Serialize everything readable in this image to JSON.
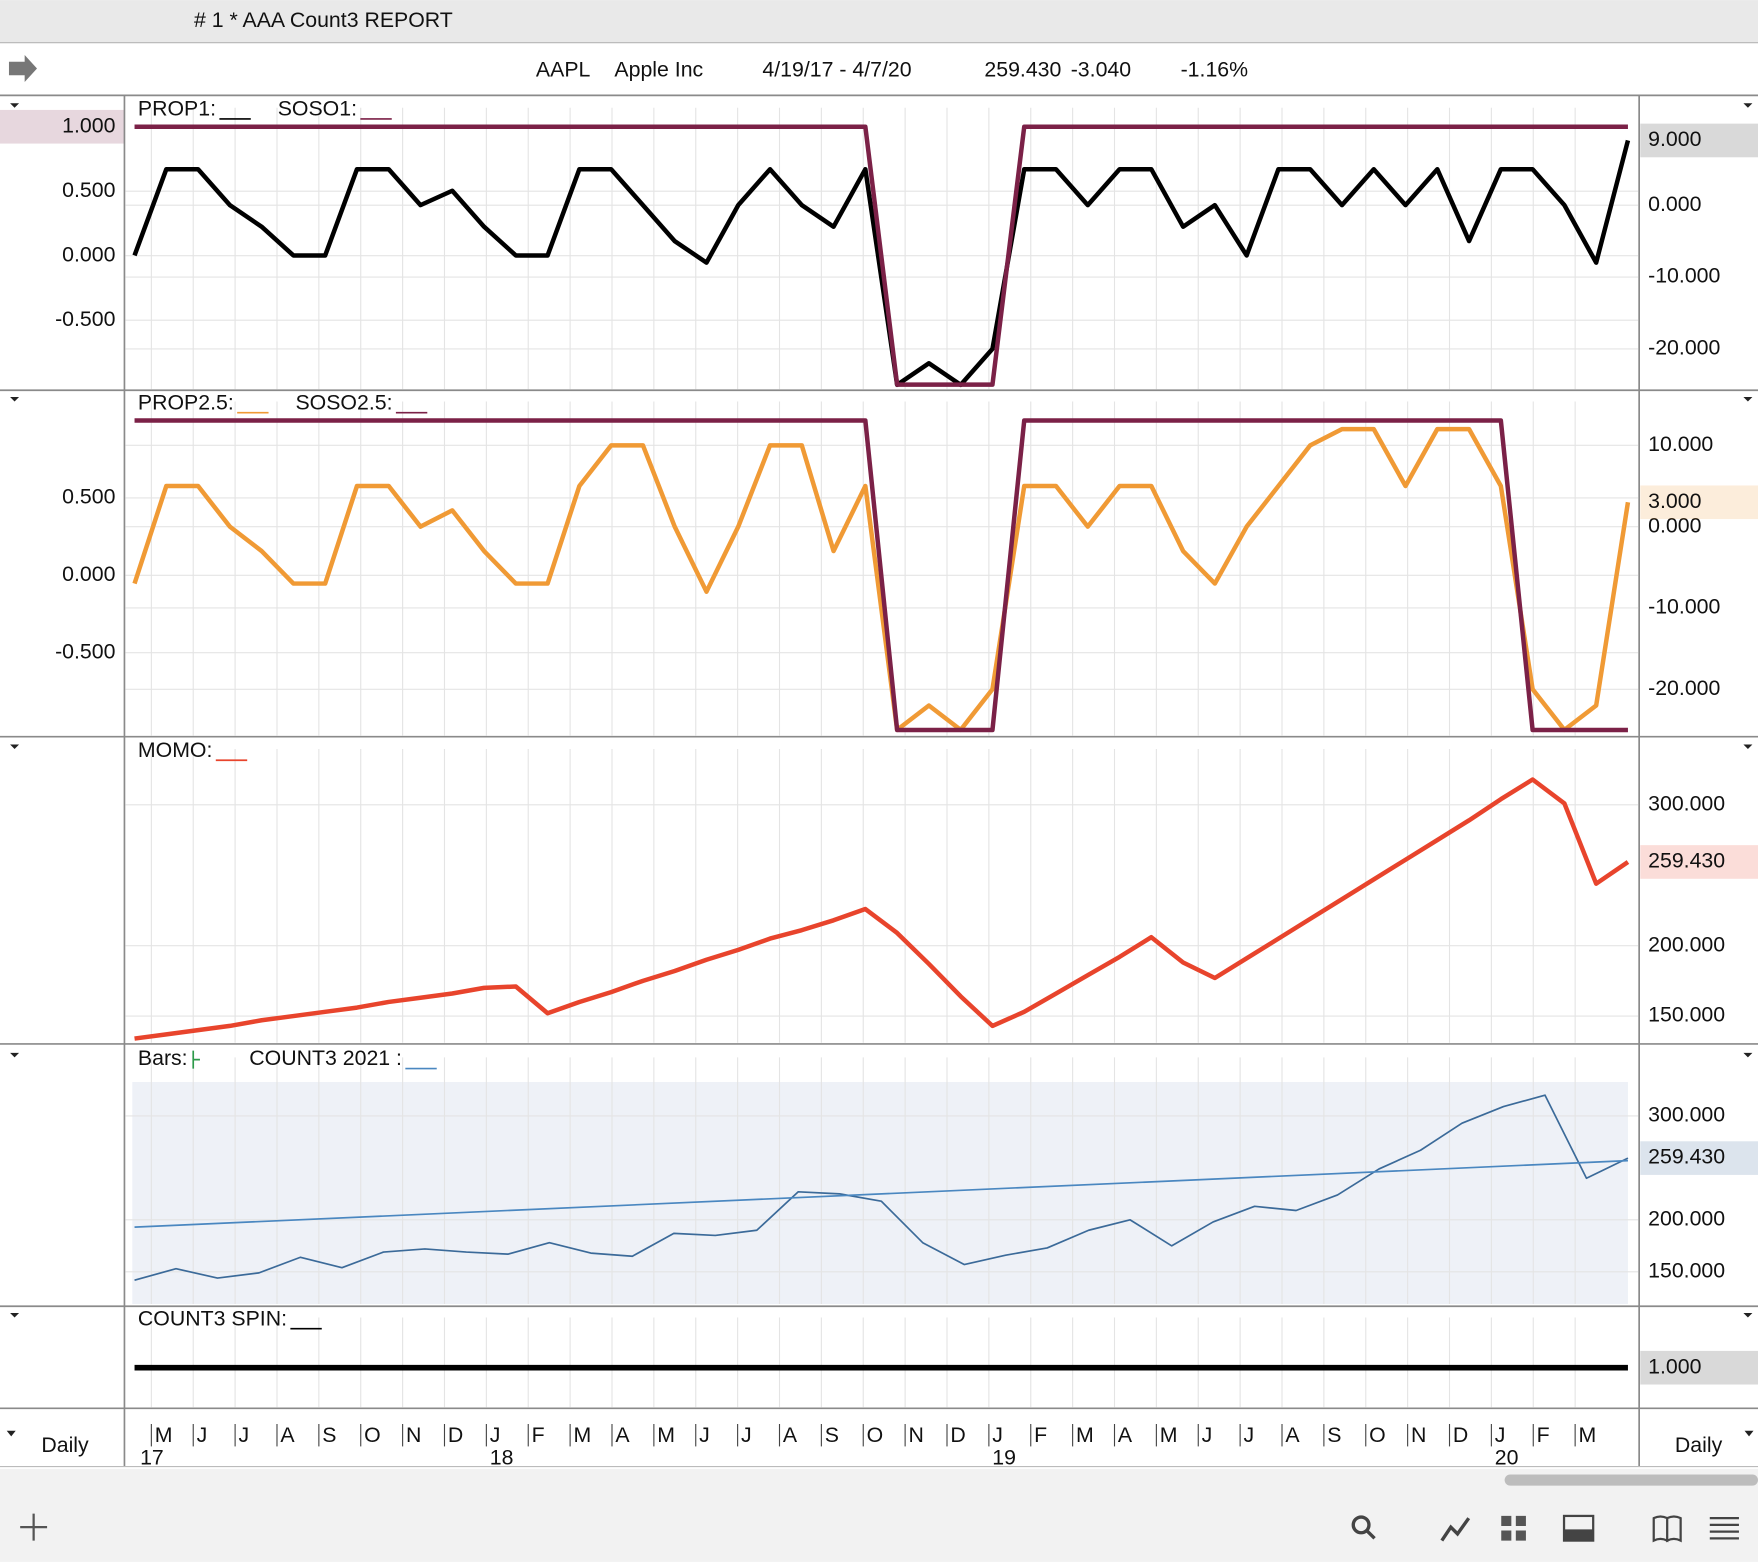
{
  "window_title": "# 1 *  AAA Count3 REPORT",
  "header": {
    "symbol": "AAPL",
    "name": "Apple Inc",
    "date_range": "4/19/17 - 4/7/20",
    "last": "259.430",
    "change": "-3.040",
    "change_pct": "-1.16%"
  },
  "chart_data": [
    {
      "type": "line",
      "series": [
        {
          "name": "PROP1:",
          "color": "#000000",
          "axis": "y2",
          "last_label": "9.000",
          "values": [
            -7,
            5,
            5,
            0,
            -3,
            -7,
            -7,
            5,
            5,
            0,
            2,
            -3,
            -7,
            -7,
            5,
            5,
            0,
            -5,
            -8,
            0,
            5,
            0,
            -3,
            5,
            -25,
            -22,
            -25,
            -20,
            5,
            5,
            0,
            5,
            5,
            -3,
            0,
            -7,
            5,
            5,
            0,
            5,
            0,
            5,
            -5,
            5,
            5,
            0,
            -8,
            9
          ]
        },
        {
          "name": "SOSO1:",
          "color": "#7b2147",
          "axis": "y",
          "last_label": "1.000",
          "values": [
            1,
            1,
            1,
            1,
            1,
            1,
            1,
            1,
            1,
            1,
            1,
            1,
            1,
            1,
            1,
            1,
            1,
            1,
            1,
            1,
            1,
            1,
            1,
            1,
            -1,
            -1,
            -1,
            -1,
            1,
            1,
            1,
            1,
            1,
            1,
            1,
            1,
            1,
            1,
            1,
            1,
            1,
            1,
            1,
            1,
            1,
            1,
            1,
            1
          ]
        }
      ],
      "ylim": [
        -1.035,
        1.217
      ],
      "yticks": [
        {
          "value": 0.5,
          "label": "0.500"
        },
        {
          "value": 0,
          "label": "0.000"
        },
        {
          "value": -0.5,
          "label": "-0.500"
        }
      ],
      "y2lim": [
        -25.6,
        14.8
      ],
      "y2ticks": [
        {
          "value": 0,
          "label": "0.000"
        },
        {
          "value": -10,
          "label": "-10.000"
        },
        {
          "value": -20,
          "label": "-20.000"
        }
      ]
    },
    {
      "type": "line",
      "series": [
        {
          "name": "PROP2.5:",
          "color": "#f09a35",
          "axis": "y2",
          "last_label": "3.000",
          "values": [
            -7,
            5,
            5,
            0,
            -3,
            -7,
            -7,
            5,
            5,
            0,
            2,
            -3,
            -7,
            -7,
            5,
            10,
            10,
            0,
            -8,
            0,
            10,
            10,
            -3,
            5,
            -25,
            -22,
            -25,
            -20,
            5,
            5,
            0,
            5,
            5,
            -3,
            -7,
            0,
            5,
            10,
            12,
            12,
            5,
            12,
            12,
            5,
            -20,
            -25,
            -22,
            3
          ]
        },
        {
          "name": "SOSO2.5:",
          "color": "#7b2147",
          "axis": "y",
          "values": [
            1,
            1,
            1,
            1,
            1,
            1,
            1,
            1,
            1,
            1,
            1,
            1,
            1,
            1,
            1,
            1,
            1,
            1,
            1,
            1,
            1,
            1,
            1,
            1,
            -1,
            -1,
            -1,
            -1,
            1,
            1,
            1,
            1,
            1,
            1,
            1,
            1,
            1,
            1,
            1,
            1,
            1,
            1,
            1,
            1,
            -1,
            -1,
            -1,
            -1
          ]
        }
      ],
      "ylim": [
        -1.036,
        1.181
      ],
      "yticks": [
        {
          "value": 0.5,
          "label": "0.500"
        },
        {
          "value": 0,
          "label": "0.000"
        },
        {
          "value": -0.5,
          "label": "-0.500"
        }
      ],
      "y2lim": [
        -25.7,
        16.5
      ],
      "y2ticks": [
        {
          "value": 10,
          "label": "10.000"
        },
        {
          "value": 0,
          "label": "0.000"
        },
        {
          "value": -10,
          "label": "-10.000"
        },
        {
          "value": -20,
          "label": "-20.000"
        }
      ]
    },
    {
      "type": "line",
      "series": [
        {
          "name": "MOMO:",
          "color": "#e8442c",
          "axis": "y2",
          "last_label": "259.430",
          "values": [
            134,
            137,
            140,
            143,
            147,
            150,
            153,
            156,
            160,
            163,
            166,
            170,
            171,
            152,
            160,
            167,
            175,
            182,
            190,
            197,
            205,
            211,
            218,
            226,
            209,
            187,
            164,
            143,
            153,
            166,
            179,
            192,
            206,
            188,
            177,
            191,
            205,
            219,
            233,
            247,
            261,
            275,
            289,
            304,
            318,
            301,
            244,
            259.43
          ]
        }
      ],
      "y2lim": [
        131,
        346
      ],
      "y2ticks": [
        {
          "value": 300,
          "label": "300.000"
        },
        {
          "value": 200,
          "label": "200.000"
        },
        {
          "value": 150,
          "label": "150.000"
        }
      ]
    },
    {
      "type": "line",
      "series": [
        {
          "name": "Bars:",
          "kind": "bars",
          "color": "#3b6a99",
          "axis": "y2",
          "last_label": "259.430",
          "values": [
            142,
            153,
            144,
            149,
            164,
            154,
            169,
            172,
            169,
            167,
            178,
            168,
            165,
            187,
            185,
            190,
            227,
            225,
            218,
            178,
            157,
            166,
            173,
            190,
            200,
            175,
            198,
            213,
            209,
            224,
            249,
            267,
            293,
            309,
            320,
            240,
            259.43
          ]
        },
        {
          "name": "COUNT3 2021 :",
          "color": "#4a87c0",
          "axis": "y2",
          "values": [
            193,
            257
          ]
        }
      ],
      "y2lim": [
        119,
        365
      ],
      "y2ticks": [
        {
          "value": 300,
          "label": "300.000"
        },
        {
          "value": 200,
          "label": "200.000"
        },
        {
          "value": 150,
          "label": "150.000"
        }
      ]
    },
    {
      "type": "line",
      "series": [
        {
          "name": "COUNT3 SPIN:",
          "color": "#000000",
          "axis": "y2",
          "last_label": "1.000",
          "values": [
            1,
            1
          ]
        }
      ],
      "y2lim": [
        0.8,
        1.3
      ],
      "y2ticks": []
    }
  ],
  "x_axis": {
    "months": [
      "M",
      "J",
      "J",
      "A",
      "S",
      "O",
      "N",
      "D",
      "J",
      "F",
      "M",
      "A",
      "M",
      "J",
      "J",
      "A",
      "S",
      "O",
      "N",
      "D",
      "J",
      "F",
      "M",
      "A",
      "M",
      "J",
      "J",
      "A",
      "S",
      "O",
      "N",
      "D",
      "J",
      "F",
      "M"
    ],
    "years": [
      "17",
      "18",
      "19",
      "20"
    ]
  },
  "period_left": "Daily",
  "period_right": "Daily"
}
